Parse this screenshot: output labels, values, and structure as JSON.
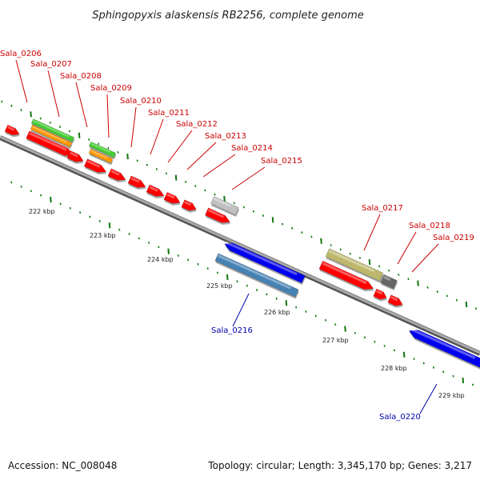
{
  "title": "Sphingopyxis alaskensis RB2256, complete genome",
  "footer": {
    "accession": "Accession: NC_008048",
    "topology": "Topology: circular; Length: 3,345,170 bp; Genes: 3,217"
  },
  "colors": {
    "plus_strand_label": "#cc0000",
    "minus_strand_label": "#0000aa",
    "cds_red": "#ff0000",
    "rna_green": "#44cc33",
    "rna_orange": "#ff9900",
    "blue_gene": "#0000ee",
    "steelblue_gene": "#4682b4",
    "khaki_gene": "#bdb76b",
    "gray_gene": "#c0c0c0",
    "darkgray_gene": "#666666",
    "backbone": "#888888",
    "ticks": "#117711"
  },
  "ticks": [
    {
      "label": "222 kbp"
    },
    {
      "label": "223 kbp"
    },
    {
      "label": "224 kbp"
    },
    {
      "label": "225 kbp"
    },
    {
      "label": "226 kbp"
    },
    {
      "label": "227 kbp"
    },
    {
      "label": "228 kbp"
    },
    {
      "label": "229 kbp"
    }
  ],
  "labels": [
    {
      "text": "Sala_0206",
      "strand": "plus"
    },
    {
      "text": "Sala_0207",
      "strand": "plus"
    },
    {
      "text": "Sala_0208",
      "strand": "plus"
    },
    {
      "text": "Sala_0209",
      "strand": "plus"
    },
    {
      "text": "Sala_0210",
      "strand": "plus"
    },
    {
      "text": "Sala_0211",
      "strand": "plus"
    },
    {
      "text": "Sala_0212",
      "strand": "plus"
    },
    {
      "text": "Sala_0213",
      "strand": "plus"
    },
    {
      "text": "Sala_0214",
      "strand": "plus"
    },
    {
      "text": "Sala_0215",
      "strand": "plus"
    },
    {
      "text": "Sala_0217",
      "strand": "plus"
    },
    {
      "text": "Sala_0218",
      "strand": "plus"
    },
    {
      "text": "Sala_0219",
      "strand": "plus"
    },
    {
      "text": "Sala_0216",
      "strand": "minus"
    },
    {
      "text": "Sala_0220",
      "strand": "minus"
    }
  ],
  "features": [
    {
      "name": "feature-1",
      "color": "cds_red",
      "arrow": "forward"
    },
    {
      "name": "feature-2",
      "color": "rna_green",
      "arrow": "none"
    },
    {
      "name": "feature-3",
      "color": "rna_orange",
      "arrow": "none"
    },
    {
      "name": "feature-4",
      "color": "cds_red",
      "arrow": "forward"
    },
    {
      "name": "feature-5",
      "color": "cds_red",
      "arrow": "forward"
    },
    {
      "name": "feature-6",
      "color": "rna_green",
      "arrow": "none"
    },
    {
      "name": "feature-7",
      "color": "rna_orange",
      "arrow": "none"
    },
    {
      "name": "feature-8",
      "color": "cds_red",
      "arrow": "forward"
    },
    {
      "name": "feature-9",
      "color": "cds_red",
      "arrow": "forward"
    },
    {
      "name": "feature-10",
      "color": "cds_red",
      "arrow": "forward"
    },
    {
      "name": "feature-11",
      "color": "cds_red",
      "arrow": "forward"
    },
    {
      "name": "feature-12",
      "color": "cds_red",
      "arrow": "forward"
    },
    {
      "name": "feature-13",
      "color": "cds_red",
      "arrow": "forward"
    },
    {
      "name": "feature-14",
      "color": "gray_gene",
      "arrow": "none"
    },
    {
      "name": "feature-15",
      "color": "cds_red",
      "arrow": "forward"
    },
    {
      "name": "feature-16",
      "color": "blue_gene",
      "arrow": "reverse"
    },
    {
      "name": "feature-17",
      "color": "steelblue_gene",
      "arrow": "none"
    },
    {
      "name": "feature-18",
      "color": "khaki_gene",
      "arrow": "none"
    },
    {
      "name": "feature-19",
      "color": "darkgray_gene",
      "arrow": "none"
    },
    {
      "name": "feature-20",
      "color": "cds_red",
      "arrow": "forward"
    },
    {
      "name": "feature-21",
      "color": "cds_red",
      "arrow": "forward"
    },
    {
      "name": "feature-22",
      "color": "cds_red",
      "arrow": "forward"
    },
    {
      "name": "feature-23",
      "color": "blue_gene",
      "arrow": "reverse"
    }
  ]
}
